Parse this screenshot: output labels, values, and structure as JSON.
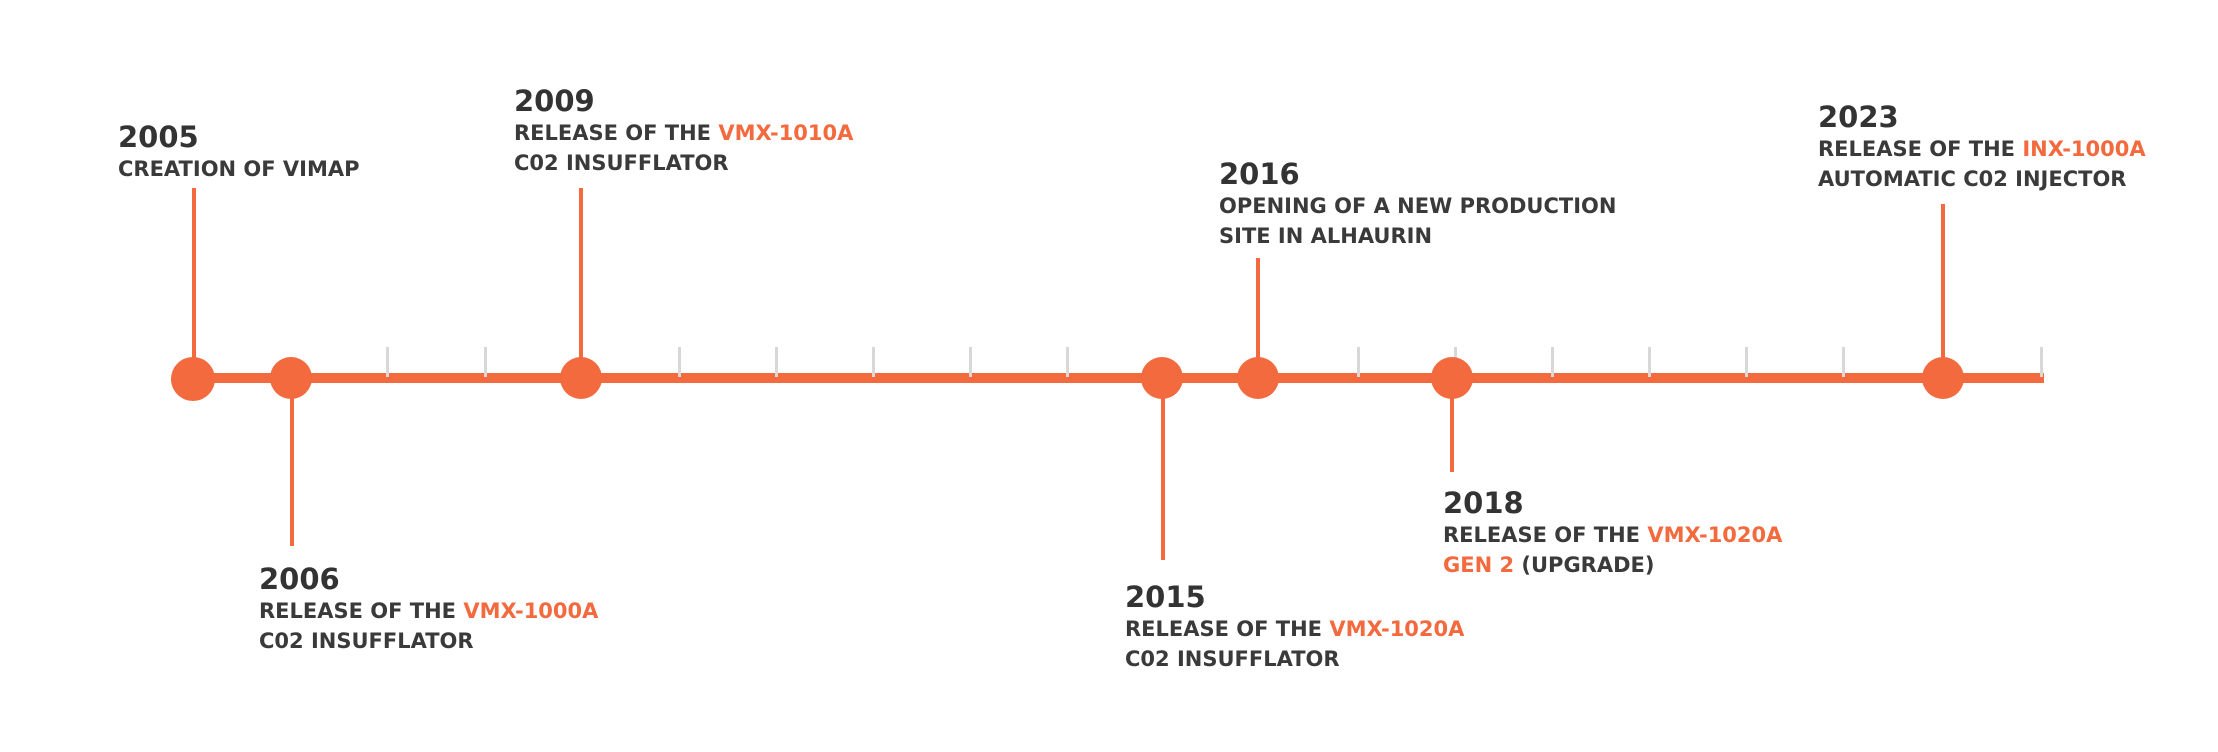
{
  "colors": {
    "accent": "#f26a3d",
    "text": "#333333",
    "tick": "#d8d8d8"
  },
  "events": [
    {
      "year": "2005",
      "line1_pre": "CREATION OF VIMAP",
      "line1_hl": "",
      "line2_hl": "",
      "line2_post": ""
    },
    {
      "year": "2006",
      "line1_pre": "RELEASE OF THE ",
      "line1_hl": "VMX-1000A",
      "line2_hl": "",
      "line2_post": "C02 INSUFFLATOR"
    },
    {
      "year": "2009",
      "line1_pre": "RELEASE OF THE ",
      "line1_hl": "VMX-1010A",
      "line2_hl": "",
      "line2_post": "C02 INSUFFLATOR"
    },
    {
      "year": "2015",
      "line1_pre": "RELEASE OF THE ",
      "line1_hl": "VMX-1020A",
      "line2_hl": "",
      "line2_post": "C02 INSUFFLATOR"
    },
    {
      "year": "2016",
      "line1_pre": "OPENING OF A NEW PRODUCTION",
      "line1_hl": "",
      "line2_hl": "",
      "line2_post": "SITE IN ALHAURIN"
    },
    {
      "year": "2018",
      "line1_pre": "RELEASE OF THE ",
      "line1_hl": "VMX-1020A",
      "line2_hl": "GEN 2",
      "line2_post": " (UPGRADE)"
    },
    {
      "year": "2023",
      "line1_pre": "RELEASE OF THE ",
      "line1_hl": "INX-1000A",
      "line2_hl": "",
      "line2_post": "AUTOMATIC C02 INJECTOR"
    }
  ]
}
